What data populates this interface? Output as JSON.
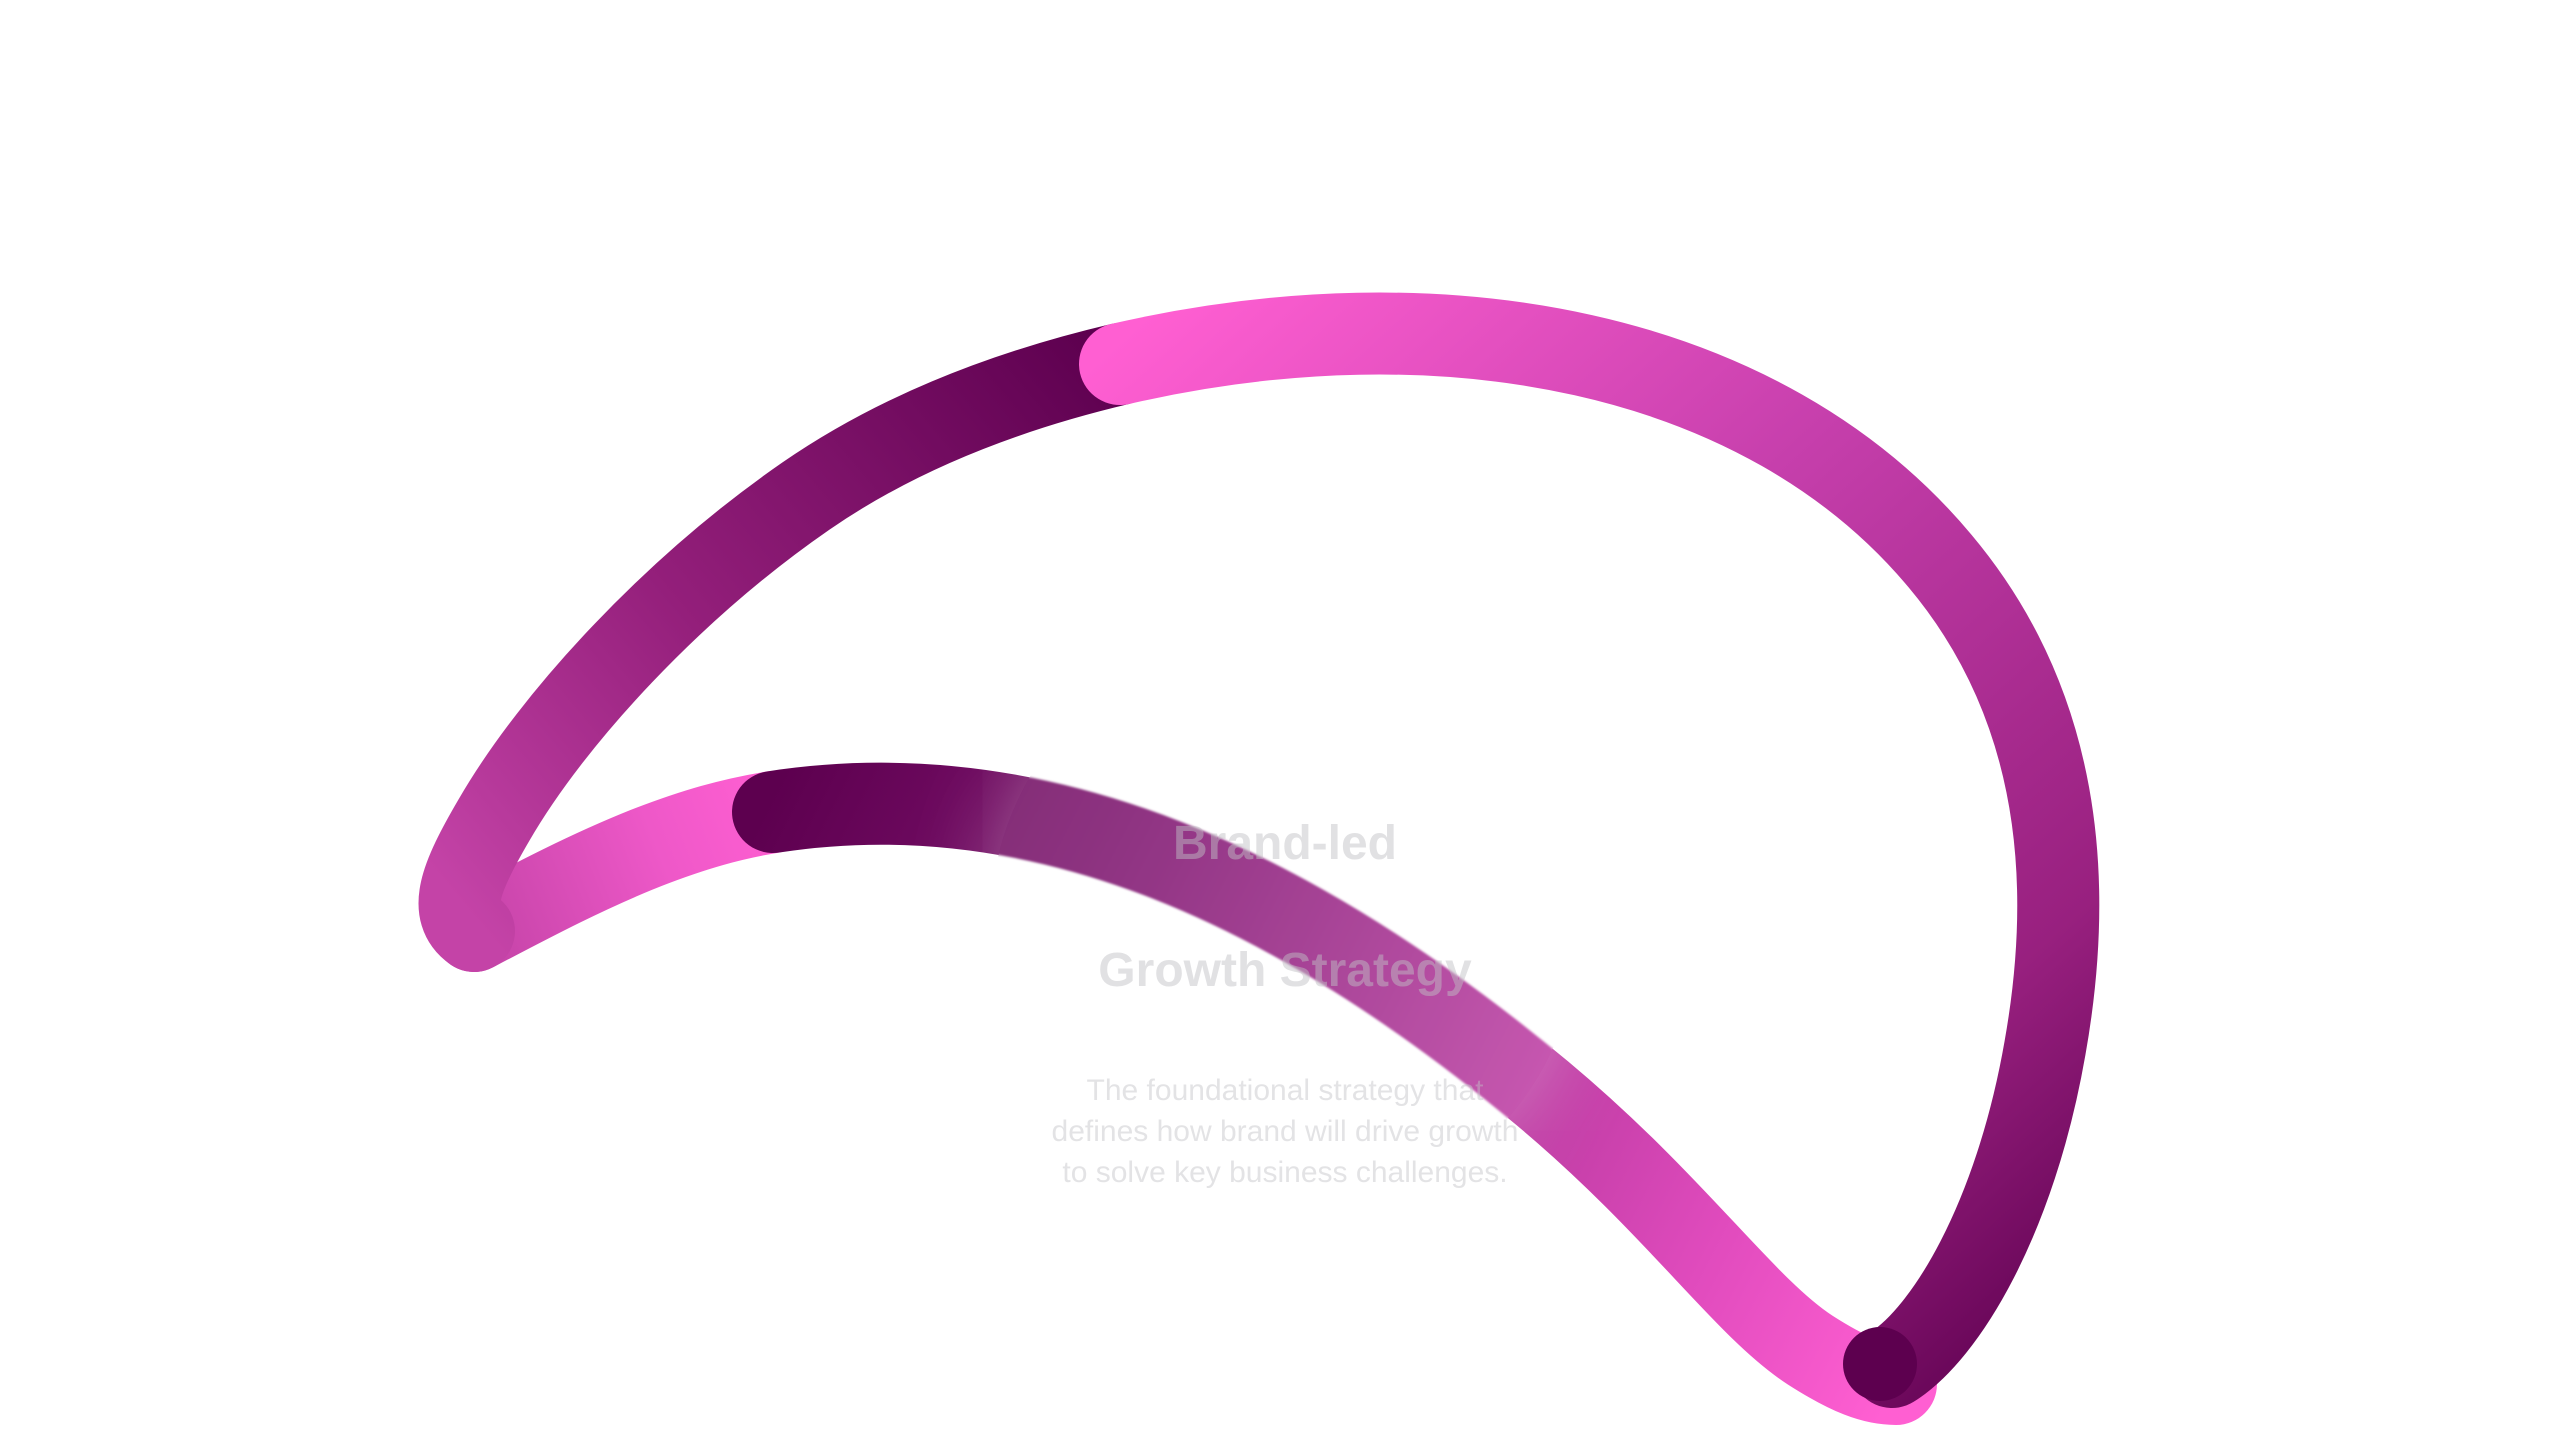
{
  "hero": {
    "title": {
      "line1": "Brand-led",
      "line2": "Growth Strategy"
    },
    "description": "The foundational strategy that defines how brand will drive growth to solve key business challenges."
  },
  "visual": {
    "ribbon_colors": {
      "light": "#ff5fd2",
      "mid": "#c13aa6",
      "dark": "#5c004f"
    }
  }
}
